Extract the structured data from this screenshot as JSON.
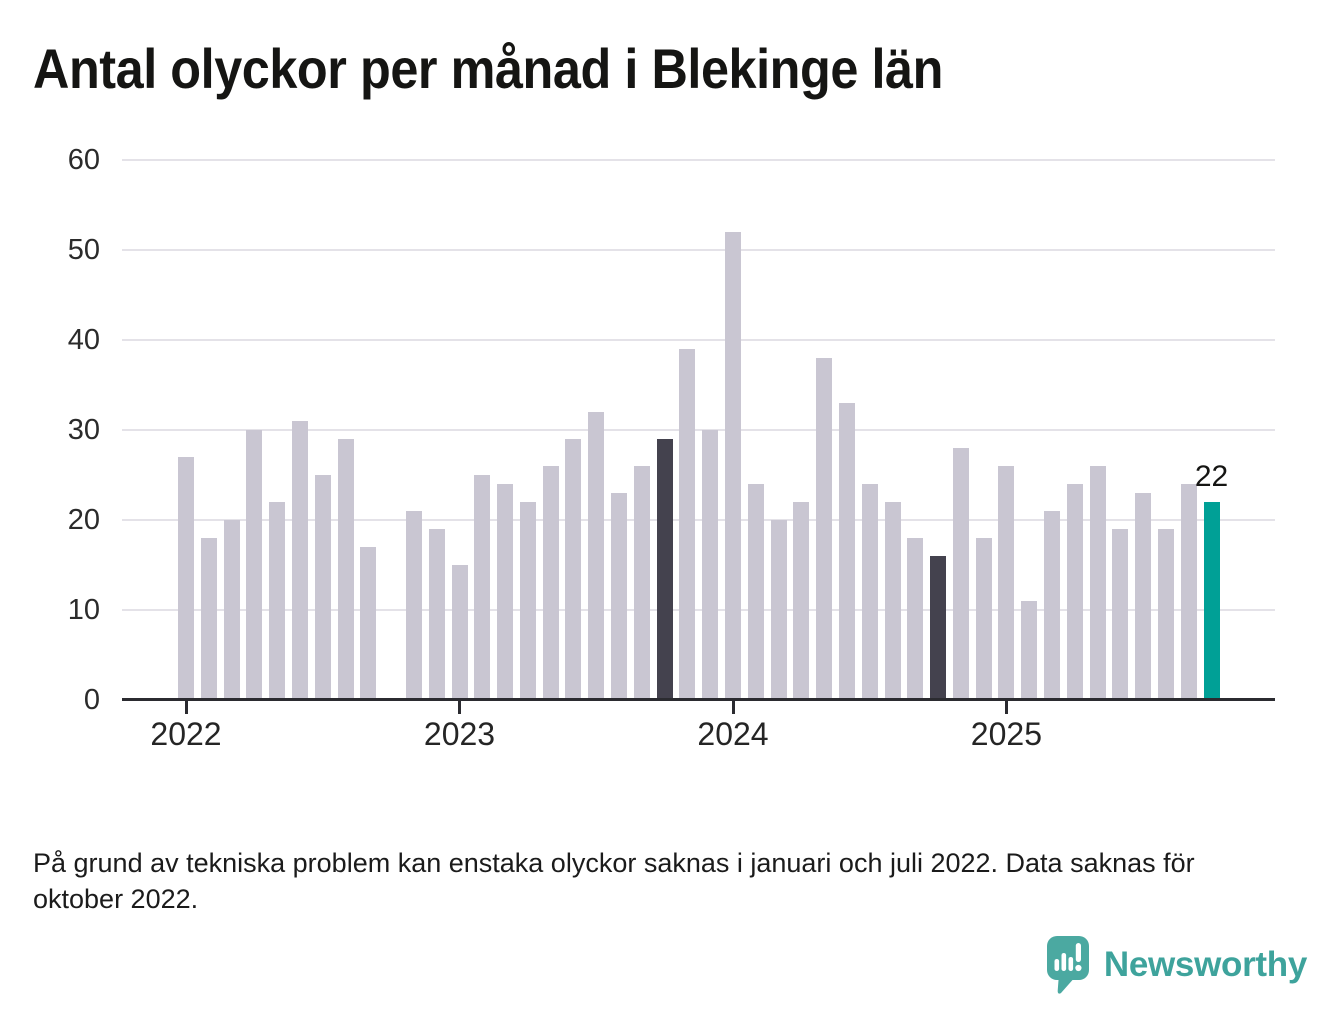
{
  "chart": {
    "title": "Antal olyckor per månad i Blekinge län",
    "footnote": "På grund av tekniska problem kan enstaka olyckor saknas i januari och juli 2022. Data saknas för oktober 2022.",
    "logo_text": "Newsworthy"
  },
  "chart_data": {
    "type": "bar",
    "title": "Antal olyckor per månad i Blekinge län",
    "xlabel": "",
    "ylabel": "",
    "ylim": [
      0,
      60
    ],
    "yticks": [
      0,
      10,
      20,
      30,
      40,
      50,
      60
    ],
    "x_tick_labels": [
      "2022",
      "2023",
      "2024",
      "2025"
    ],
    "grid": "horizontal",
    "legend": "none",
    "colors": {
      "default": "#c9c6d2",
      "dark": "#44424e",
      "accent": "#00a096",
      "axis": "#2b2b30",
      "gridline": "#e4e2e8",
      "logo_teal": "#4BA9A1"
    },
    "annotation": {
      "label": "22"
    },
    "months": [
      {
        "m": "2022-01",
        "v": 27
      },
      {
        "m": "2022-02",
        "v": 18
      },
      {
        "m": "2022-03",
        "v": 20
      },
      {
        "m": "2022-04",
        "v": 30
      },
      {
        "m": "2022-05",
        "v": 22
      },
      {
        "m": "2022-06",
        "v": 31
      },
      {
        "m": "2022-07",
        "v": 25
      },
      {
        "m": "2022-08",
        "v": 29
      },
      {
        "m": "2022-09",
        "v": 17
      },
      {
        "m": "2022-10",
        "v": null
      },
      {
        "m": "2022-11",
        "v": 21
      },
      {
        "m": "2022-12",
        "v": 19
      },
      {
        "m": "2023-01",
        "v": 15
      },
      {
        "m": "2023-02",
        "v": 25
      },
      {
        "m": "2023-03",
        "v": 24
      },
      {
        "m": "2023-04",
        "v": 22
      },
      {
        "m": "2023-05",
        "v": 26
      },
      {
        "m": "2023-06",
        "v": 29
      },
      {
        "m": "2023-07",
        "v": 32
      },
      {
        "m": "2023-08",
        "v": 23
      },
      {
        "m": "2023-09",
        "v": 26
      },
      {
        "m": "2023-10",
        "v": 29,
        "c": "dark"
      },
      {
        "m": "2023-11",
        "v": 39
      },
      {
        "m": "2023-12",
        "v": 30
      },
      {
        "m": "2024-01",
        "v": 52
      },
      {
        "m": "2024-02",
        "v": 24
      },
      {
        "m": "2024-03",
        "v": 20
      },
      {
        "m": "2024-04",
        "v": 22
      },
      {
        "m": "2024-05",
        "v": 38
      },
      {
        "m": "2024-06",
        "v": 33
      },
      {
        "m": "2024-07",
        "v": 24
      },
      {
        "m": "2024-08",
        "v": 22
      },
      {
        "m": "2024-09",
        "v": 18
      },
      {
        "m": "2024-10",
        "v": 16,
        "c": "dark"
      },
      {
        "m": "2024-11",
        "v": 28
      },
      {
        "m": "2024-12",
        "v": 18
      },
      {
        "m": "2025-01",
        "v": 26
      },
      {
        "m": "2025-02",
        "v": 11
      },
      {
        "m": "2025-03",
        "v": 21
      },
      {
        "m": "2025-04",
        "v": 24
      },
      {
        "m": "2025-05",
        "v": 26
      },
      {
        "m": "2025-06",
        "v": 19
      },
      {
        "m": "2025-07",
        "v": 23
      },
      {
        "m": "2025-08",
        "v": 19
      },
      {
        "m": "2025-09",
        "v": 24
      },
      {
        "m": "2025-10",
        "v": 22,
        "c": "accent"
      }
    ]
  }
}
